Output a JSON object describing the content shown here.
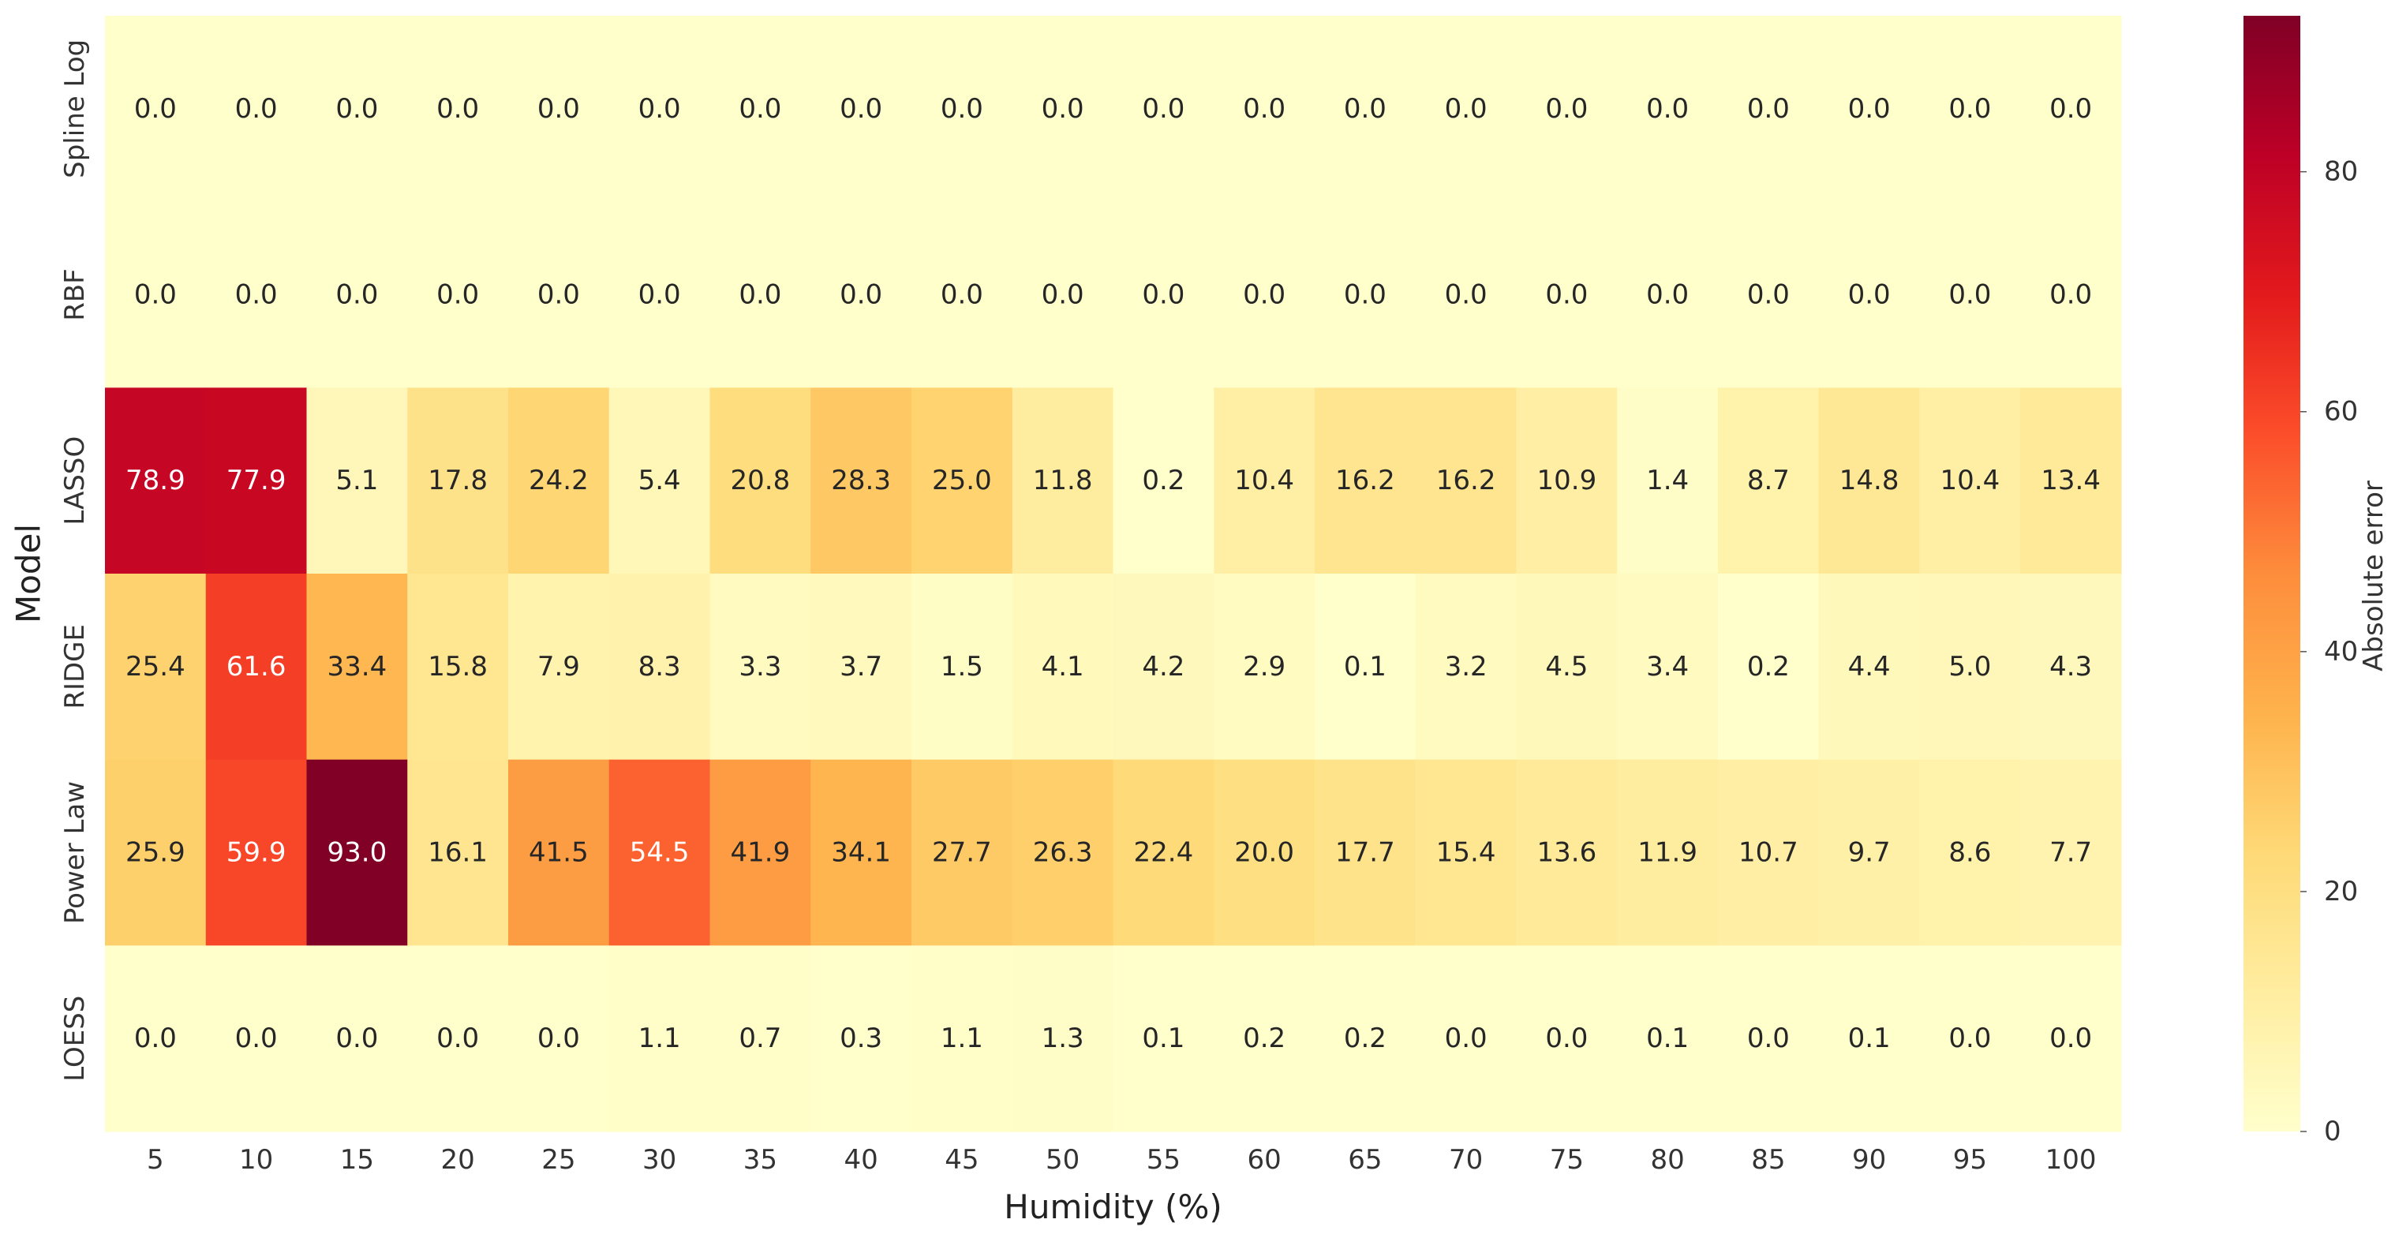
{
  "chart_data": {
    "type": "heatmap",
    "x": [
      5,
      10,
      15,
      20,
      25,
      30,
      35,
      40,
      45,
      50,
      55,
      60,
      65,
      70,
      75,
      80,
      85,
      90,
      95,
      100
    ],
    "x_tick_labels": [
      "5",
      "10",
      "15",
      "20",
      "25",
      "30",
      "35",
      "40",
      "45",
      "50",
      "55",
      "60",
      "65",
      "70",
      "75",
      "80",
      "85",
      "90",
      "95",
      "100"
    ],
    "rows": [
      "Spline Log",
      "RBF",
      "LASSO",
      "RIDGE",
      "Power Law",
      "LOESS"
    ],
    "values": [
      [
        0.0,
        0.0,
        0.0,
        0.0,
        0.0,
        0.0,
        0.0,
        0.0,
        0.0,
        0.0,
        0.0,
        0.0,
        0.0,
        0.0,
        0.0,
        0.0,
        0.0,
        0.0,
        0.0,
        0.0
      ],
      [
        0.0,
        0.0,
        0.0,
        0.0,
        0.0,
        0.0,
        0.0,
        0.0,
        0.0,
        0.0,
        0.0,
        0.0,
        0.0,
        0.0,
        0.0,
        0.0,
        0.0,
        0.0,
        0.0,
        0.0
      ],
      [
        78.9,
        77.9,
        5.1,
        17.8,
        24.2,
        5.4,
        20.8,
        28.3,
        25.0,
        11.8,
        0.2,
        10.4,
        16.2,
        16.2,
        10.9,
        1.4,
        8.7,
        14.8,
        10.4,
        13.4
      ],
      [
        25.4,
        61.6,
        33.4,
        15.8,
        7.9,
        8.3,
        3.3,
        3.7,
        1.5,
        4.1,
        4.2,
        2.9,
        0.1,
        3.2,
        4.5,
        3.4,
        0.2,
        4.4,
        5.0,
        4.3
      ],
      [
        25.9,
        59.9,
        93.0,
        16.1,
        41.5,
        54.5,
        41.9,
        34.1,
        27.7,
        26.3,
        22.4,
        20.0,
        17.7,
        15.4,
        13.6,
        11.9,
        10.7,
        9.7,
        8.6,
        7.7
      ],
      [
        0.0,
        0.0,
        0.0,
        0.0,
        0.0,
        1.1,
        0.7,
        0.3,
        1.1,
        1.3,
        0.1,
        0.2,
        0.2,
        0.0,
        0.0,
        0.1,
        0.0,
        0.1,
        0.0,
        0.0
      ]
    ],
    "xlabel": "Humidity (%)",
    "ylabel": "Model",
    "colorbar": {
      "label": "Absolute error",
      "range": [
        0,
        93.0
      ],
      "ticks": [
        0,
        20,
        40,
        60,
        80
      ],
      "colormap": "YlOrRd"
    },
    "value_format": "1 decimal"
  }
}
